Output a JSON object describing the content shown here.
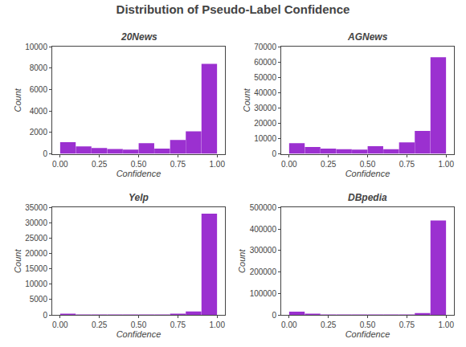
{
  "title": "Distribution of Pseudo-Label Confidence",
  "chart_data": [
    {
      "type": "bar",
      "title": "20News",
      "xlabel": "Confidence",
      "ylabel": "Count",
      "x": [
        0.05,
        0.15,
        0.25,
        0.35,
        0.45,
        0.55,
        0.65,
        0.75,
        0.85,
        0.95
      ],
      "values": [
        1100,
        700,
        550,
        450,
        400,
        1000,
        500,
        1300,
        2100,
        8400
      ],
      "color": "#9B30D0",
      "xlim": [
        -0.05,
        1.05
      ],
      "xticks": [
        {
          "value": 0,
          "label": "0.00"
        },
        0.25,
        {
          "value": 0.5,
          "label": "0.50"
        },
        0.75,
        {
          "value": 1,
          "label": "1.00"
        }
      ],
      "ylim": [
        0,
        10000
      ],
      "yticks": [
        0,
        2000,
        4000,
        6000,
        8000,
        10000
      ],
      "grid": false
    },
    {
      "type": "bar",
      "title": "AGNews",
      "xlabel": "Confidence",
      "ylabel": "Count",
      "x": [
        0.05,
        0.15,
        0.25,
        0.35,
        0.45,
        0.55,
        0.65,
        0.75,
        0.85,
        0.95
      ],
      "values": [
        7000,
        4500,
        3500,
        3000,
        2800,
        5000,
        3000,
        7500,
        15000,
        63000
      ],
      "color": "#9B30D0",
      "xlim": [
        -0.05,
        1.05
      ],
      "xticks": [
        {
          "value": 0,
          "label": "0.00"
        },
        0.25,
        {
          "value": 0.5,
          "label": "0.50"
        },
        0.75,
        {
          "value": 1,
          "label": "1.00"
        }
      ],
      "ylim": [
        0,
        70000
      ],
      "yticks": [
        0,
        10000,
        20000,
        30000,
        40000,
        50000,
        60000,
        70000
      ],
      "grid": false
    },
    {
      "type": "bar",
      "title": "Yelp",
      "xlabel": "Confidence",
      "ylabel": "Count",
      "x": [
        0.05,
        0.15,
        0.25,
        0.35,
        0.45,
        0.55,
        0.65,
        0.75,
        0.85,
        0.95
      ],
      "values": [
        200,
        100,
        50,
        50,
        50,
        50,
        50,
        200,
        1100,
        33000
      ],
      "color": "#9B30D0",
      "xlim": [
        -0.05,
        1.05
      ],
      "xticks": [
        {
          "value": 0,
          "label": "0.00"
        },
        0.25,
        {
          "value": 0.5,
          "label": "0.50"
        },
        0.75,
        {
          "value": 1,
          "label": "1.00"
        }
      ],
      "ylim": [
        0,
        35000
      ],
      "yticks": [
        0,
        5000,
        10000,
        15000,
        20000,
        25000,
        30000,
        35000
      ],
      "grid": false
    },
    {
      "type": "bar",
      "title": "DBpedia",
      "xlabel": "Confidence",
      "ylabel": "Count",
      "x": [
        0.05,
        0.15,
        0.25,
        0.35,
        0.45,
        0.55,
        0.65,
        0.75,
        0.85,
        0.95
      ],
      "values": [
        15000,
        5000,
        2000,
        1500,
        1000,
        1000,
        1000,
        2000,
        8000,
        440000
      ],
      "color": "#9B30D0",
      "xlim": [
        -0.05,
        1.05
      ],
      "xticks": [
        {
          "value": 0,
          "label": "0.00"
        },
        0.25,
        {
          "value": 0.5,
          "label": "0.50"
        },
        0.75,
        {
          "value": 1,
          "label": "1.00"
        }
      ],
      "ylim": [
        0,
        500000
      ],
      "yticks": [
        0,
        100000,
        200000,
        300000,
        400000,
        500000
      ],
      "grid": false
    }
  ]
}
